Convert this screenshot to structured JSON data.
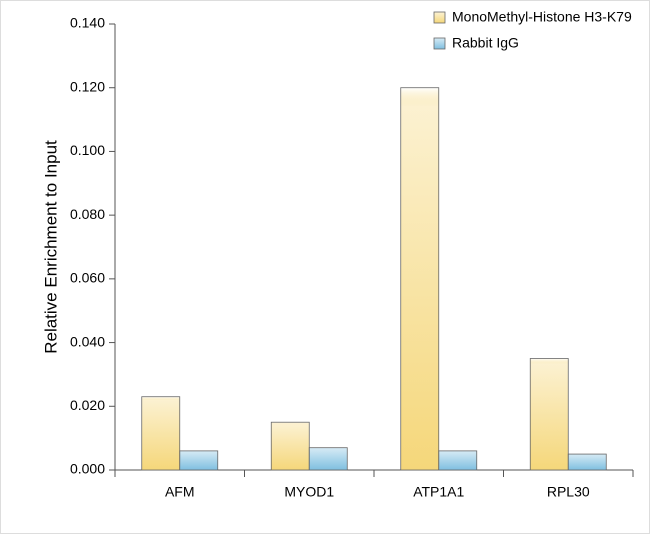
{
  "chart_data": {
    "type": "bar",
    "y_label": "Relative Enrichment to Input",
    "categories": [
      "AFM",
      "MYOD1",
      "ATP1A1",
      "RPL30"
    ],
    "series": [
      {
        "name": "MonoMethyl-Histone H3-K79",
        "color": "#f5d77a",
        "values": [
          0.023,
          0.015,
          0.12,
          0.035
        ]
      },
      {
        "name": "Rabbit IgG",
        "color": "#7fbfe0",
        "values": [
          0.006,
          0.007,
          0.006,
          0.005
        ]
      }
    ],
    "ylim": [
      0,
      0.14
    ],
    "yticks": [
      {
        "value": 0,
        "label": "0.000"
      },
      {
        "value": 0.02,
        "label": "0.020"
      },
      {
        "value": 0.04,
        "label": "0.040"
      },
      {
        "value": 0.06,
        "label": "0.060"
      },
      {
        "value": 0.08,
        "label": "0.080"
      },
      {
        "value": 0.1,
        "label": "0.100"
      },
      {
        "value": 0.12,
        "label": "0.120"
      },
      {
        "value": 0.14,
        "label": "0.140"
      }
    ],
    "legend": "top-right"
  }
}
